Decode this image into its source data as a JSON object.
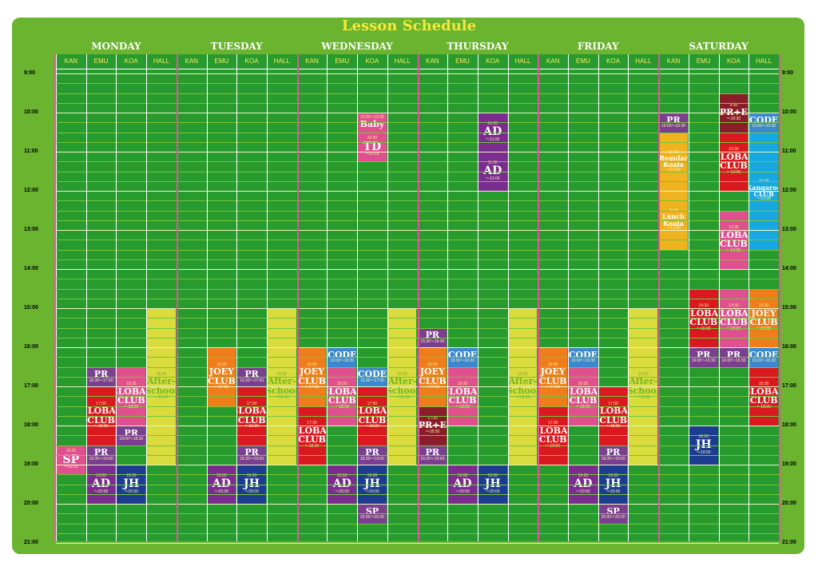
{
  "title": "Lesson Schedule",
  "days": [
    "MONDAY",
    "TUESDAY",
    "WEDNESDAY",
    "THURSDAY",
    "FRIDAY",
    "SATURDAY"
  ],
  "rooms": [
    "KAN",
    "EMU",
    "KOA",
    "HALL"
  ],
  "hours": [
    "9:00",
    "10:00",
    "11:00",
    "12:00",
    "13:00",
    "14:00",
    "15:00",
    "16:00",
    "17:00",
    "18:00",
    "19:00",
    "20:00",
    "21:00"
  ],
  "colors": {
    "board": "#6ab42f",
    "grid": "#279b2e",
    "title": "#f5e93a",
    "purple": "#7a3f8f",
    "red": "#d9181f",
    "pink": "#e0508e",
    "navy": "#1c3d8f",
    "blue": "#3a88cf",
    "orange": "#ef7e1a",
    "yellow": "#d9dc3c",
    "gold": "#efb31f",
    "darkred": "#8a1d2a",
    "cyan": "#17a8e2",
    "violet": "#7b2c8f"
  },
  "lessons": [
    {
      "day": 0,
      "room": 1,
      "start": 16.5,
      "end": 17.0,
      "color": "purple",
      "name": "PR",
      "time": "",
      "end_time": "16:30〜17:00"
    },
    {
      "day": 0,
      "room": 1,
      "start": 17.0,
      "end": 18.5,
      "color": "red",
      "name": "GLOBAL\nCLUB",
      "time": "17:00",
      "end_time": "〜18:30"
    },
    {
      "day": 0,
      "room": 1,
      "start": 18.5,
      "end": 19.0,
      "color": "purple",
      "name": "PR",
      "time": "",
      "end_time": "18:30〜19:00"
    },
    {
      "day": 0,
      "room": 1,
      "start": 19.0,
      "end": 20.0,
      "color": "violet",
      "name": "AD",
      "time": "19:00",
      "end_time": "〜20:00",
      "size": "big"
    },
    {
      "day": 0,
      "room": 2,
      "start": 16.5,
      "end": 18.0,
      "color": "pink",
      "name": "GLOBAL\nCLUB",
      "time": "16:30",
      "end_time": "〜18:00"
    },
    {
      "day": 0,
      "room": 2,
      "start": 18.0,
      "end": 18.5,
      "color": "purple",
      "name": "PR",
      "time": "",
      "end_time": "18:00〜18:30"
    },
    {
      "day": 0,
      "room": 2,
      "start": 19.0,
      "end": 20.0,
      "color": "navy",
      "name": "JH",
      "time": "19:00",
      "end_time": "〜20:00",
      "size": "big"
    },
    {
      "day": 0,
      "room": 0,
      "start": 18.5,
      "end": 19.25,
      "color": "pink",
      "name": "SP",
      "time": "18:30",
      "end_time": "〜19:15",
      "size": "big"
    },
    {
      "day": 0,
      "room": 3,
      "start": 15.0,
      "end": 19.0,
      "color": "yellow",
      "name": "After-\nSchool",
      "time": "15:00",
      "end_time": "〜19:00"
    },
    {
      "day": 1,
      "room": 1,
      "start": 16.0,
      "end": 17.5,
      "color": "orange",
      "name": "JOEY\nCLUB",
      "time": "16:00",
      "end_time": "〜17:30"
    },
    {
      "day": 1,
      "room": 1,
      "start": 19.0,
      "end": 20.0,
      "color": "violet",
      "name": "AD",
      "time": "19:00",
      "end_time": "〜20:00",
      "size": "big"
    },
    {
      "day": 1,
      "room": 2,
      "start": 16.5,
      "end": 17.0,
      "color": "purple",
      "name": "PR",
      "time": "",
      "end_time": "16:30〜17:00"
    },
    {
      "day": 1,
      "room": 2,
      "start": 17.0,
      "end": 18.5,
      "color": "red",
      "name": "GLOBAL\nCLUB",
      "time": "17:00",
      "end_time": "〜18:30"
    },
    {
      "day": 1,
      "room": 2,
      "start": 18.5,
      "end": 19.0,
      "color": "purple",
      "name": "PR",
      "time": "",
      "end_time": "18:30〜19:00"
    },
    {
      "day": 1,
      "room": 2,
      "start": 19.0,
      "end": 20.0,
      "color": "navy",
      "name": "JH",
      "time": "19:00",
      "end_time": "〜20:00",
      "size": "big"
    },
    {
      "day": 1,
      "room": 3,
      "start": 15.0,
      "end": 19.0,
      "color": "yellow",
      "name": "After-\nSchool",
      "time": "15:00",
      "end_time": "〜19:00"
    },
    {
      "day": 2,
      "room": 0,
      "start": 16.0,
      "end": 17.5,
      "color": "orange",
      "name": "JOEY\nCLUB",
      "time": "16:00",
      "end_time": "〜17:30"
    },
    {
      "day": 2,
      "room": 0,
      "start": 17.5,
      "end": 19.0,
      "color": "red",
      "name": "GLOBAL\nCLUB",
      "time": "17:30",
      "end_time": "〜19:00"
    },
    {
      "day": 2,
      "room": 1,
      "start": 16.0,
      "end": 16.5,
      "color": "blue",
      "name": "CODE",
      "time": "",
      "end_time": "16:00〜16:30"
    },
    {
      "day": 2,
      "room": 1,
      "start": 16.5,
      "end": 18.0,
      "color": "pink",
      "name": "GLOBAL\nCLUB",
      "time": "16:30",
      "end_time": "〜18:00"
    },
    {
      "day": 2,
      "room": 1,
      "start": 19.0,
      "end": 20.0,
      "color": "violet",
      "name": "AD",
      "time": "19:00",
      "end_time": "〜20:00",
      "size": "big"
    },
    {
      "day": 2,
      "room": 2,
      "start": 10.0,
      "end": 10.5,
      "color": "pink",
      "name": "Baby",
      "time": "10:00〜10:30",
      "end_time": ""
    },
    {
      "day": 2,
      "room": 2,
      "start": 10.5,
      "end": 11.25,
      "color": "pink",
      "name": "TD",
      "time": "10:30",
      "end_time": "〜11:15",
      "size": "big"
    },
    {
      "day": 2,
      "room": 2,
      "start": 16.5,
      "end": 17.0,
      "color": "blue",
      "name": "CODE",
      "time": "",
      "end_time": "16:30〜17:00"
    },
    {
      "day": 2,
      "room": 2,
      "start": 17.0,
      "end": 18.5,
      "color": "red",
      "name": "GLOBAL\nCLUB",
      "time": "17:00",
      "end_time": "〜18:30"
    },
    {
      "day": 2,
      "room": 2,
      "start": 18.5,
      "end": 19.0,
      "color": "purple",
      "name": "PR",
      "time": "",
      "end_time": "18:30〜19:00"
    },
    {
      "day": 2,
      "room": 2,
      "start": 19.0,
      "end": 20.0,
      "color": "navy",
      "name": "JH",
      "time": "19:00",
      "end_time": "〜20:00",
      "size": "big"
    },
    {
      "day": 2,
      "room": 2,
      "start": 20.0,
      "end": 20.5,
      "color": "purple",
      "name": "SP",
      "time": "",
      "end_time": "20:00〜20:30"
    },
    {
      "day": 2,
      "room": 3,
      "start": 15.0,
      "end": 19.0,
      "color": "yellow",
      "name": "After-\nSchool",
      "time": "15:00",
      "end_time": "〜19:00"
    },
    {
      "day": 3,
      "room": 0,
      "start": 15.5,
      "end": 16.0,
      "color": "purple",
      "name": "PR",
      "time": "",
      "end_time": "15:30〜16:00"
    },
    {
      "day": 3,
      "room": 0,
      "start": 16.0,
      "end": 17.5,
      "color": "orange",
      "name": "JOEY\nCLUB",
      "time": "16:00",
      "end_time": "〜17:30"
    },
    {
      "day": 3,
      "room": 0,
      "start": 17.5,
      "end": 18.5,
      "color": "darkred",
      "name": "PR+E",
      "time": "17:30",
      "end_time": "〜18:30"
    },
    {
      "day": 3,
      "room": 0,
      "start": 18.5,
      "end": 19.0,
      "color": "purple",
      "name": "PR",
      "time": "",
      "end_time": "18:30〜19:00"
    },
    {
      "day": 3,
      "room": 1,
      "start": 16.0,
      "end": 16.5,
      "color": "blue",
      "name": "CODE",
      "time": "",
      "end_time": "16:00〜16:30"
    },
    {
      "day": 3,
      "room": 1,
      "start": 16.5,
      "end": 18.0,
      "color": "pink",
      "name": "GLOBAL\nCLUB",
      "time": "16:30",
      "end_time": "〜18:00"
    },
    {
      "day": 3,
      "room": 1,
      "start": 19.0,
      "end": 20.0,
      "color": "violet",
      "name": "AD",
      "time": "19:00",
      "end_time": "〜20:00",
      "size": "big"
    },
    {
      "day": 3,
      "room": 2,
      "start": 10.0,
      "end": 11.0,
      "color": "violet",
      "name": "AD",
      "time": "10:00",
      "end_time": "〜11:00",
      "size": "big"
    },
    {
      "day": 3,
      "room": 2,
      "start": 11.0,
      "end": 12.0,
      "color": "violet",
      "name": "AD",
      "time": "11:00",
      "end_time": "〜12:00",
      "size": "big"
    },
    {
      "day": 3,
      "room": 2,
      "start": 19.0,
      "end": 20.0,
      "color": "navy",
      "name": "JH",
      "time": "19:00",
      "end_time": "〜20:00",
      "size": "big"
    },
    {
      "day": 3,
      "room": 3,
      "start": 15.0,
      "end": 19.0,
      "color": "yellow",
      "name": "After-\nSchool",
      "time": "15:00",
      "end_time": "〜19:00"
    },
    {
      "day": 4,
      "room": 0,
      "start": 16.0,
      "end": 17.5,
      "color": "orange",
      "name": "JOEY\nCLUB",
      "time": "16:00",
      "end_time": "〜17:30"
    },
    {
      "day": 4,
      "room": 0,
      "start": 17.5,
      "end": 19.0,
      "color": "red",
      "name": "GLOBAL\nCLUB",
      "time": "17:30",
      "end_time": "〜19:00"
    },
    {
      "day": 4,
      "room": 1,
      "start": 16.0,
      "end": 16.5,
      "color": "blue",
      "name": "CODE",
      "time": "",
      "end_time": "16:00〜16:30"
    },
    {
      "day": 4,
      "room": 1,
      "start": 16.5,
      "end": 18.0,
      "color": "pink",
      "name": "GLOBAL\nCLUB",
      "time": "16:30",
      "end_time": "〜18:00"
    },
    {
      "day": 4,
      "room": 1,
      "start": 19.0,
      "end": 20.0,
      "color": "violet",
      "name": "AD",
      "time": "19:00",
      "end_time": "〜20:00",
      "size": "big"
    },
    {
      "day": 4,
      "room": 2,
      "start": 17.0,
      "end": 18.5,
      "color": "red",
      "name": "GLOBAL\nCLUB",
      "time": "17:00",
      "end_time": "〜18:30"
    },
    {
      "day": 4,
      "room": 2,
      "start": 18.5,
      "end": 19.0,
      "color": "purple",
      "name": "PR",
      "time": "",
      "end_time": "18:30〜19:00"
    },
    {
      "day": 4,
      "room": 2,
      "start": 19.0,
      "end": 20.0,
      "color": "navy",
      "name": "JH",
      "time": "19:00",
      "end_time": "〜20:00",
      "size": "big"
    },
    {
      "day": 4,
      "room": 2,
      "start": 20.0,
      "end": 20.5,
      "color": "purple",
      "name": "SP",
      "time": "",
      "end_time": "20:00〜20:30"
    },
    {
      "day": 4,
      "room": 3,
      "start": 15.0,
      "end": 19.0,
      "color": "yellow",
      "name": "After-\nSchool",
      "time": "15:00",
      "end_time": "〜19:00"
    },
    {
      "day": 5,
      "room": 0,
      "start": 10.0,
      "end": 10.5,
      "color": "purple",
      "name": "PR",
      "time": "",
      "end_time": "10:00〜10:30"
    },
    {
      "day": 5,
      "room": 0,
      "start": 10.5,
      "end": 12.0,
      "color": "gold",
      "name": "Regular\nKoala",
      "time": "10:30",
      "end_time": "〜12:00"
    },
    {
      "day": 5,
      "room": 0,
      "start": 12.0,
      "end": 13.5,
      "color": "gold",
      "name": "Lunch\nKoala",
      "time": "12:00",
      "end_time": "〜13:30"
    },
    {
      "day": 5,
      "room": 1,
      "start": 14.5,
      "end": 16.0,
      "color": "red",
      "name": "GLOBAL\nCLUB",
      "time": "14:30",
      "end_time": "〜16:00"
    },
    {
      "day": 5,
      "room": 1,
      "start": 16.0,
      "end": 16.5,
      "color": "purple",
      "name": "PR",
      "time": "",
      "end_time": "16:00〜16:30"
    },
    {
      "day": 5,
      "room": 1,
      "start": 18.0,
      "end": 19.0,
      "color": "navy",
      "name": "JH",
      "time": "18:00",
      "end_time": "〜19:00",
      "size": "big"
    },
    {
      "day": 5,
      "room": 2,
      "start": 9.5,
      "end": 10.5,
      "color": "darkred",
      "name": "PR+E",
      "time": "9:30",
      "end_time": "〜10:30"
    },
    {
      "day": 5,
      "room": 2,
      "start": 10.5,
      "end": 12.0,
      "color": "red",
      "name": "GLOBAL\nCLUB",
      "time": "10:30",
      "end_time": "〜12:00"
    },
    {
      "day": 5,
      "room": 2,
      "start": 12.5,
      "end": 14.0,
      "color": "pink",
      "name": "GLOBAL\nCLUB",
      "time": "12:30",
      "end_time": "〜14:00"
    },
    {
      "day": 5,
      "room": 2,
      "start": 14.5,
      "end": 16.0,
      "color": "pink",
      "name": "GLOBAL\nCLUB",
      "time": "14:30",
      "end_time": "〜16:00"
    },
    {
      "day": 5,
      "room": 2,
      "start": 16.0,
      "end": 16.5,
      "color": "purple",
      "name": "PR",
      "time": "",
      "end_time": "16:00〜16:30"
    },
    {
      "day": 5,
      "room": 3,
      "start": 10.0,
      "end": 10.5,
      "color": "blue",
      "name": "CODE",
      "time": "",
      "end_time": "10:00〜10:30"
    },
    {
      "day": 5,
      "room": 3,
      "start": 10.5,
      "end": 13.5,
      "color": "cyan",
      "name": "Kangaroo\nCLUB",
      "time": "10:30",
      "end_time": "〜13:30"
    },
    {
      "day": 5,
      "room": 3,
      "start": 14.5,
      "end": 16.0,
      "color": "orange",
      "name": "JOEY\nCLUB",
      "time": "14:30",
      "end_time": "〜16:00"
    },
    {
      "day": 5,
      "room": 3,
      "start": 16.0,
      "end": 16.5,
      "color": "blue",
      "name": "CODE",
      "time": "",
      "end_time": "16:00〜16:30"
    },
    {
      "day": 5,
      "room": 3,
      "start": 16.5,
      "end": 18.0,
      "color": "red",
      "name": "GLOBAL\nCLUB",
      "time": "16:30",
      "end_time": "〜18:00"
    }
  ]
}
